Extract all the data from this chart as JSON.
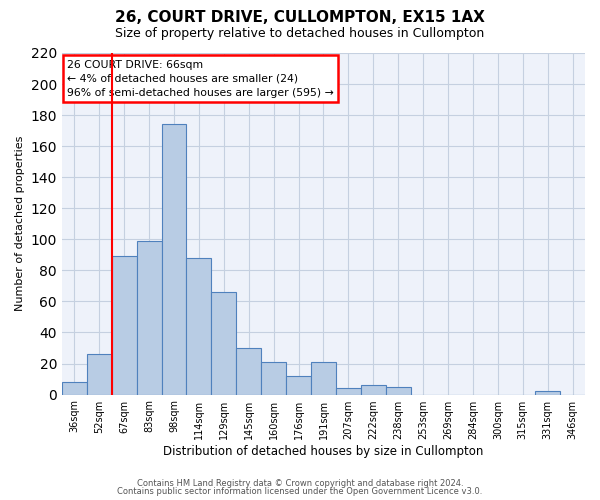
{
  "title": "26, COURT DRIVE, CULLOMPTON, EX15 1AX",
  "subtitle": "Size of property relative to detached houses in Cullompton",
  "xlabel": "Distribution of detached houses by size in Cullompton",
  "ylabel": "Number of detached properties",
  "bin_labels": [
    "36sqm",
    "52sqm",
    "67sqm",
    "83sqm",
    "98sqm",
    "114sqm",
    "129sqm",
    "145sqm",
    "160sqm",
    "176sqm",
    "191sqm",
    "207sqm",
    "222sqm",
    "238sqm",
    "253sqm",
    "269sqm",
    "284sqm",
    "300sqm",
    "315sqm",
    "331sqm",
    "346sqm"
  ],
  "bar_values": [
    8,
    26,
    89,
    99,
    174,
    88,
    66,
    30,
    21,
    12,
    21,
    4,
    6,
    5,
    0,
    0,
    0,
    0,
    0,
    2,
    0
  ],
  "bar_color": "#b8cce4",
  "bar_edge_color": "#4f81bd",
  "ylim": [
    0,
    220
  ],
  "yticks": [
    0,
    20,
    40,
    60,
    80,
    100,
    120,
    140,
    160,
    180,
    200,
    220
  ],
  "red_line_bin_index": 2,
  "annotation_title": "26 COURT DRIVE: 66sqm",
  "annotation_line1": "← 4% of detached houses are smaller (24)",
  "annotation_line2": "96% of semi-detached houses are larger (595) →",
  "footer1": "Contains HM Land Registry data © Crown copyright and database right 2024.",
  "footer2": "Contains public sector information licensed under the Open Government Licence v3.0.",
  "bg_color": "#eef2fa",
  "grid_color": "#c5d0e0"
}
